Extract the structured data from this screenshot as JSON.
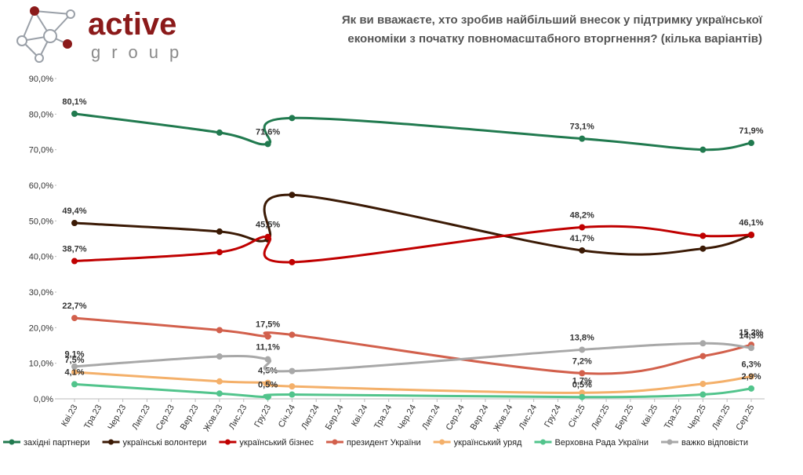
{
  "brand": {
    "name": "active",
    "sub": "group"
  },
  "chart_data": {
    "type": "line",
    "title": [
      "Як ви вважаєте, хто зробив найбільший внесок у підтримку української",
      "економіки з початку повномасштабного вторгнення? (кілька варіантів)"
    ],
    "xticks": [
      "Кві.23",
      "Тра.23",
      "Чер.23",
      "Лип.23",
      "Сер.23",
      "Вер.23",
      "Жов.23",
      "Лис.23",
      "Гру.23",
      "Січ.24",
      "Лют.24",
      "Бер.24",
      "Кві.24",
      "Тра.24",
      "Чер.24",
      "Лип.24",
      "Сер.24",
      "Вер.24",
      "Жов.24",
      "Лис.24",
      "Гру.24",
      "Січ.25",
      "Лют.25",
      "Бер.25",
      "Кві.25",
      "Тра.25",
      "Чер.25",
      "Лип.25",
      "Сер.25"
    ],
    "x": [
      "Кві.23",
      "Жов.23",
      "Гру.23",
      "Січ.24",
      "Січ.25",
      "Чер.25",
      "Сер.25"
    ],
    "ylim": [
      0,
      90
    ],
    "yticks": [
      {
        "value": 0,
        "label": "0,0%"
      },
      {
        "value": 10,
        "label": "10,0%"
      },
      {
        "value": 20,
        "label": "20,0%"
      },
      {
        "value": 30,
        "label": "30,0%"
      },
      {
        "value": 40,
        "label": "40,0%"
      },
      {
        "value": 50,
        "label": "50,0%"
      },
      {
        "value": 60,
        "label": "60,0%"
      },
      {
        "value": 70,
        "label": "70,0%"
      },
      {
        "value": 80,
        "label": "80,0%"
      },
      {
        "value": 90,
        "label": "90,0%"
      }
    ],
    "legend": "bottom",
    "series": [
      {
        "name": "західні партнери",
        "color": "#217a4f",
        "values": [
          80.1,
          74.8,
          71.6,
          78.9,
          73.1,
          70.0,
          71.9
        ],
        "value_labels": [
          "80,1%",
          null,
          "71,6%",
          null,
          "73,1%",
          null,
          "71,9%"
        ]
      },
      {
        "name": "українські волонтери",
        "color": "#3b1a05",
        "values": [
          49.4,
          47.0,
          44.8,
          57.3,
          41.7,
          42.2,
          46.0
        ],
        "value_labels": [
          "49,4%",
          null,
          null,
          null,
          "41,7%",
          null,
          null
        ]
      },
      {
        "name": "український бізнес",
        "color": "#c00000",
        "values": [
          38.7,
          41.2,
          45.5,
          38.4,
          48.2,
          45.8,
          46.1
        ],
        "value_labels": [
          "38,7%",
          null,
          "45,5%",
          null,
          "48,2%",
          null,
          "46,1%"
        ]
      },
      {
        "name": "президент України",
        "color": "#d2604c",
        "values": [
          22.7,
          19.3,
          17.5,
          18.0,
          7.2,
          12.0,
          15.2
        ],
        "value_labels": [
          "22,7%",
          null,
          "17,5%",
          null,
          "7,2%",
          null,
          "15,2%"
        ]
      },
      {
        "name": "український уряд",
        "color": "#f4b06a",
        "values": [
          7.5,
          4.9,
          4.5,
          3.5,
          1.7,
          4.2,
          6.3
        ],
        "value_labels": [
          "7,5%",
          null,
          "4,5%",
          null,
          "1,7%",
          null,
          "6,3%"
        ]
      },
      {
        "name": "Верховна Рада України",
        "color": "#52c48c",
        "values": [
          4.1,
          1.5,
          0.5,
          1.2,
          0.5,
          1.2,
          2.9
        ],
        "value_labels": [
          "4,1%",
          null,
          "0,5%",
          null,
          "0,5%",
          null,
          "2,9%"
        ]
      },
      {
        "name": "важко відповісти",
        "color": "#a8a8a8",
        "values": [
          9.1,
          11.9,
          11.1,
          7.8,
          13.8,
          15.6,
          14.3
        ],
        "value_labels": [
          "9,1%",
          null,
          "11,1%",
          null,
          "13,8%",
          null,
          "14,3%"
        ]
      }
    ]
  }
}
